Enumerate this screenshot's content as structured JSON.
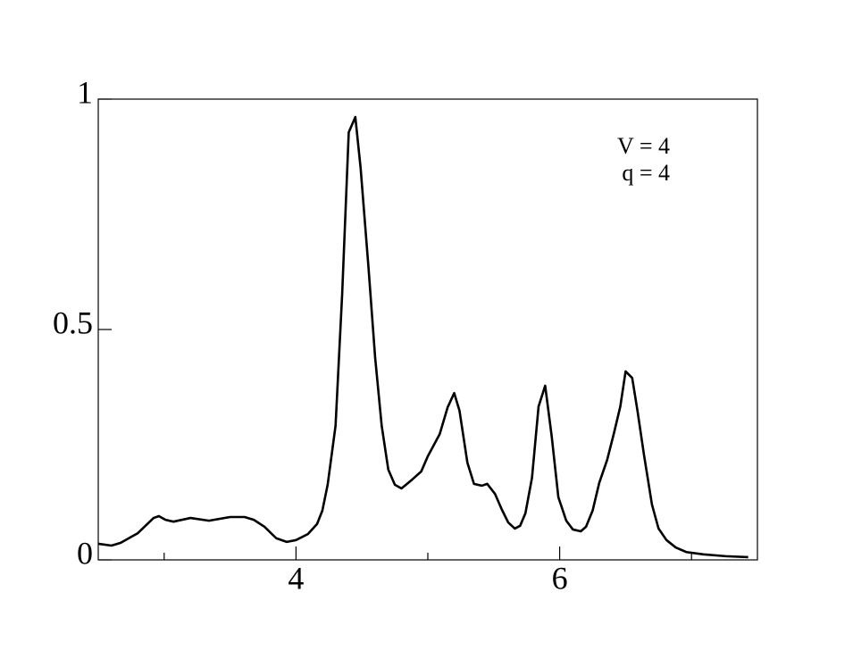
{
  "chart_data": {
    "type": "line",
    "annotations": [
      "V = 4",
      "q = 4"
    ],
    "x": [
      2.5,
      2.6,
      2.67,
      2.8,
      2.92,
      2.96,
      3.01,
      3.07,
      3.2,
      3.34,
      3.5,
      3.61,
      3.68,
      3.76,
      3.85,
      3.93,
      4.0,
      4.09,
      4.16,
      4.2,
      4.24,
      4.3,
      4.35,
      4.4,
      4.45,
      4.49,
      4.55,
      4.6,
      4.65,
      4.7,
      4.75,
      4.8,
      4.88,
      4.95,
      5.0,
      5.09,
      5.15,
      5.2,
      5.24,
      5.3,
      5.35,
      5.41,
      5.45,
      5.51,
      5.56,
      5.61,
      5.66,
      5.7,
      5.74,
      5.79,
      5.84,
      5.89,
      5.94,
      5.99,
      6.05,
      6.1,
      6.16,
      6.2,
      6.25,
      6.3,
      6.36,
      6.41,
      6.46,
      6.5,
      6.55,
      6.59,
      6.64,
      6.7,
      6.75,
      6.81,
      6.88,
      6.96,
      7.09,
      7.26,
      7.43
    ],
    "series": [
      {
        "color": "#000000",
        "values": [
          0.035,
          0.031,
          0.037,
          0.058,
          0.091,
          0.095,
          0.087,
          0.083,
          0.091,
          0.085,
          0.093,
          0.093,
          0.087,
          0.072,
          0.047,
          0.039,
          0.043,
          0.056,
          0.078,
          0.107,
          0.163,
          0.291,
          0.576,
          0.928,
          0.961,
          0.851,
          0.634,
          0.44,
          0.291,
          0.196,
          0.163,
          0.155,
          0.174,
          0.192,
          0.225,
          0.273,
          0.331,
          0.362,
          0.324,
          0.211,
          0.165,
          0.161,
          0.165,
          0.143,
          0.11,
          0.081,
          0.068,
          0.074,
          0.101,
          0.178,
          0.333,
          0.378,
          0.267,
          0.136,
          0.085,
          0.066,
          0.062,
          0.072,
          0.107,
          0.167,
          0.217,
          0.273,
          0.333,
          0.409,
          0.395,
          0.324,
          0.227,
          0.12,
          0.068,
          0.043,
          0.027,
          0.017,
          0.012,
          0.008,
          0.006
        ]
      }
    ],
    "xlim": [
      2.5,
      7.5
    ],
    "xticks": [
      4,
      6
    ],
    "minor_xticks": [
      3,
      5,
      7
    ],
    "ylim": [
      0,
      1
    ],
    "yticks": [
      0,
      0.5,
      1
    ],
    "grid": false
  }
}
